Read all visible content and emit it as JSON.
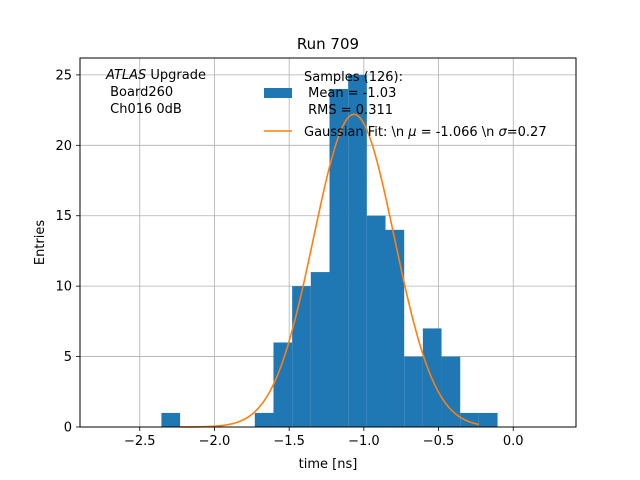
{
  "chart_data": {
    "type": "bar",
    "title": "Run 709",
    "xlabel": "time [ns]",
    "ylabel": "Entries",
    "xlim": [
      -2.9,
      0.42
    ],
    "ylim": [
      0,
      26.2
    ],
    "xticks": [
      -2.5,
      -2.0,
      -1.5,
      -1.0,
      -0.5,
      0.0
    ],
    "xtick_labels": [
      "−2.5",
      "−2.0",
      "−1.5",
      "−1.0",
      "−0.5",
      "0.0"
    ],
    "yticks": [
      0,
      5,
      10,
      15,
      20,
      25
    ],
    "ytick_labels": [
      "0",
      "5",
      "10",
      "15",
      "20",
      "25"
    ],
    "grid": true,
    "bar_color": "#1f77b4",
    "fit_color": "#ff7f0e",
    "histogram": {
      "bin_edges": [
        -2.355,
        -2.23,
        -2.105,
        -1.98,
        -1.855,
        -1.73,
        -1.605,
        -1.48,
        -1.355,
        -1.23,
        -1.105,
        -0.98,
        -0.855,
        -0.73,
        -0.605,
        -0.48,
        -0.355,
        -0.23,
        -0.105
      ],
      "counts": [
        1,
        0,
        0,
        0,
        0,
        1,
        6,
        10,
        11,
        24,
        25,
        15,
        14,
        5,
        7,
        5,
        1,
        1
      ]
    },
    "gaussian_fit": {
      "amplitude": 22.2,
      "mu": -1.066,
      "sigma": 0.27,
      "x_range": [
        -2.23,
        -0.23
      ]
    },
    "legend": {
      "placement": "top-right",
      "entries": [
        {
          "kind": "patch",
          "lines": [
            "Samples (126):",
            " Mean = -1.03",
            " RMS = 0.311"
          ]
        },
        {
          "kind": "line",
          "lines": [
            "Gaussian Fit: \\n $\\mu$ = -1.066 \\n $\\sigma$=0.27"
          ],
          "display_parts": [
            "Gaussian Fit: \\n ",
            "μ",
            " = -1.066 \\n ",
            "σ",
            "=0.27"
          ]
        }
      ]
    },
    "annotation": {
      "atlas_italic": "ATLAS",
      "atlas_rest": " Upgrade",
      "line2": " Board260",
      "line3": " Ch016 0dB"
    }
  }
}
